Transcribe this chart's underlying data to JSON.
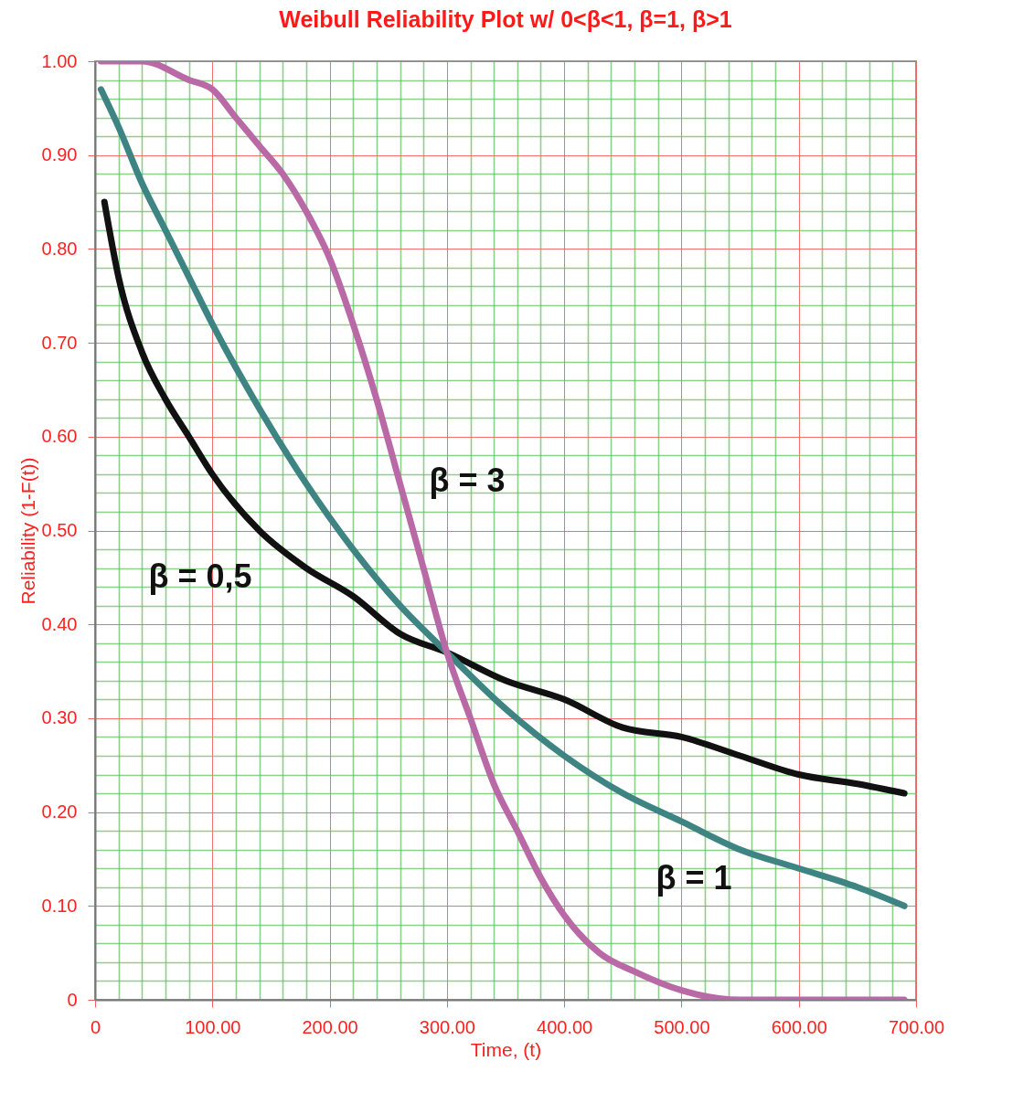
{
  "chart_data": {
    "type": "line",
    "title": "Weibull Reliability Plot w/ 0<β<1, β=1, β>1",
    "xlabel": "Time, (t)",
    "ylabel": "Reliability (1-F(t))",
    "xlim": [
      0,
      700
    ],
    "ylim": [
      0,
      1
    ],
    "xticks": [
      {
        "value": 0,
        "label": "0"
      },
      {
        "value": 20,
        "label": null
      },
      {
        "value": 40,
        "label": null
      },
      {
        "value": 60,
        "label": null
      },
      {
        "value": 80,
        "label": null
      },
      {
        "value": 100,
        "label": "100.00"
      },
      {
        "value": 120,
        "label": null
      },
      {
        "value": 140,
        "label": null
      },
      {
        "value": 160,
        "label": null
      },
      {
        "value": 180,
        "label": null
      },
      {
        "value": 200,
        "label": "200.00"
      },
      {
        "value": 220,
        "label": null
      },
      {
        "value": 240,
        "label": null
      },
      {
        "value": 260,
        "label": null
      },
      {
        "value": 280,
        "label": null
      },
      {
        "value": 300,
        "label": "300.00"
      },
      {
        "value": 320,
        "label": null
      },
      {
        "value": 340,
        "label": null
      },
      {
        "value": 360,
        "label": null
      },
      {
        "value": 380,
        "label": null
      },
      {
        "value": 400,
        "label": "400.00"
      },
      {
        "value": 420,
        "label": null
      },
      {
        "value": 440,
        "label": null
      },
      {
        "value": 460,
        "label": null
      },
      {
        "value": 480,
        "label": null
      },
      {
        "value": 500,
        "label": "500.00"
      },
      {
        "value": 520,
        "label": null
      },
      {
        "value": 540,
        "label": null
      },
      {
        "value": 560,
        "label": null
      },
      {
        "value": 580,
        "label": null
      },
      {
        "value": 600,
        "label": "600.00"
      },
      {
        "value": 620,
        "label": null
      },
      {
        "value": 640,
        "label": null
      },
      {
        "value": 660,
        "label": null
      },
      {
        "value": 680,
        "label": null
      },
      {
        "value": 700,
        "label": "700.00"
      }
    ],
    "yticks": [
      {
        "value": 0,
        "label": "0"
      },
      {
        "value": 0.02,
        "label": null
      },
      {
        "value": 0.04,
        "label": null
      },
      {
        "value": 0.06,
        "label": null
      },
      {
        "value": 0.08,
        "label": null
      },
      {
        "value": 0.1,
        "label": "0.10"
      },
      {
        "value": 0.12,
        "label": null
      },
      {
        "value": 0.14,
        "label": null
      },
      {
        "value": 0.16,
        "label": null
      },
      {
        "value": 0.18,
        "label": null
      },
      {
        "value": 0.2,
        "label": "0.20"
      },
      {
        "value": 0.22,
        "label": null
      },
      {
        "value": 0.24,
        "label": null
      },
      {
        "value": 0.26,
        "label": null
      },
      {
        "value": 0.28,
        "label": null
      },
      {
        "value": 0.3,
        "label": "0.30"
      },
      {
        "value": 0.32,
        "label": null
      },
      {
        "value": 0.34,
        "label": null
      },
      {
        "value": 0.36,
        "label": null
      },
      {
        "value": 0.38,
        "label": null
      },
      {
        "value": 0.4,
        "label": "0.40"
      },
      {
        "value": 0.42,
        "label": null
      },
      {
        "value": 0.44,
        "label": null
      },
      {
        "value": 0.46,
        "label": null
      },
      {
        "value": 0.48,
        "label": null
      },
      {
        "value": 0.5,
        "label": "0.50"
      },
      {
        "value": 0.52,
        "label": null
      },
      {
        "value": 0.54,
        "label": null
      },
      {
        "value": 0.56,
        "label": null
      },
      {
        "value": 0.58,
        "label": null
      },
      {
        "value": 0.6,
        "label": "0.60"
      },
      {
        "value": 0.62,
        "label": null
      },
      {
        "value": 0.64,
        "label": null
      },
      {
        "value": 0.66,
        "label": null
      },
      {
        "value": 0.68,
        "label": null
      },
      {
        "value": 0.7,
        "label": "0.70"
      },
      {
        "value": 0.72,
        "label": null
      },
      {
        "value": 0.74,
        "label": null
      },
      {
        "value": 0.76,
        "label": null
      },
      {
        "value": 0.78,
        "label": null
      },
      {
        "value": 0.8,
        "label": "0.80"
      },
      {
        "value": 0.82,
        "label": null
      },
      {
        "value": 0.84,
        "label": null
      },
      {
        "value": 0.86,
        "label": null
      },
      {
        "value": 0.88,
        "label": null
      },
      {
        "value": 0.9,
        "label": "0.90"
      },
      {
        "value": 0.92,
        "label": null
      },
      {
        "value": 0.94,
        "label": null
      },
      {
        "value": 0.96,
        "label": null
      },
      {
        "value": 0.98,
        "label": null
      },
      {
        "value": 1,
        "label": "1.00"
      }
    ],
    "grid": true,
    "line_style": "solid",
    "marker": "none",
    "series": [
      {
        "color": "#111111",
        "x": [
          8,
          20,
          40,
          60,
          80,
          100,
          140,
          180,
          220,
          260,
          300,
          350,
          400,
          450,
          500,
          550,
          600,
          650,
          690
        ],
        "values": [
          0.85,
          0.77,
          0.69,
          0.64,
          0.6,
          0.56,
          0.5,
          0.46,
          0.43,
          0.39,
          0.37,
          0.34,
          0.32,
          0.29,
          0.28,
          0.26,
          0.24,
          0.23,
          0.22
        ]
      },
      {
        "color": "#3d8482",
        "x": [
          5,
          20,
          40,
          60,
          80,
          100,
          140,
          180,
          220,
          260,
          300,
          350,
          400,
          450,
          500,
          550,
          600,
          650,
          690
        ],
        "values": [
          0.97,
          0.93,
          0.87,
          0.82,
          0.77,
          0.72,
          0.63,
          0.55,
          0.48,
          0.42,
          0.37,
          0.31,
          0.26,
          0.22,
          0.19,
          0.16,
          0.14,
          0.12,
          0.1
        ]
      },
      {
        "color": "#b96aa6",
        "x": [
          5,
          40,
          80,
          100,
          120,
          140,
          160,
          180,
          200,
          220,
          240,
          260,
          280,
          300,
          320,
          340,
          360,
          380,
          400,
          430,
          460,
          500,
          550,
          600,
          690
        ],
        "values": [
          1,
          1,
          0.98,
          0.97,
          0.94,
          0.91,
          0.88,
          0.84,
          0.79,
          0.72,
          0.64,
          0.55,
          0.46,
          0.37,
          0.3,
          0.23,
          0.18,
          0.13,
          0.09,
          0.05,
          0.03,
          0.01,
          0,
          0,
          0
        ]
      }
    ],
    "annotations": [
      "β = 3",
      "β = 0,5",
      "β = 1"
    ]
  }
}
